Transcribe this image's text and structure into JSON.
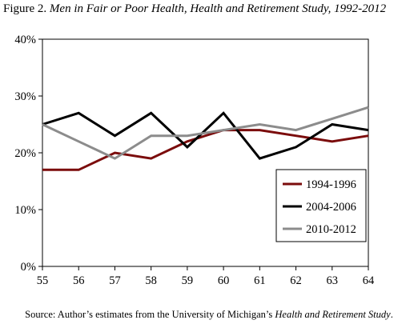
{
  "figure": {
    "label": "Figure 2.",
    "title": "Men in Fair or Poor Health, Health and Retirement Study, 1992-2012"
  },
  "source": {
    "prefix": "Source: Author’s estimates from the University of Michigan’s ",
    "italic": "Health and Retirement Study",
    "suffix": "."
  },
  "colors": {
    "1994-1996": "#7b0c0c",
    "2004-2006": "#000000",
    "2010-2012": "#8c8c8c"
  },
  "chart_data": {
    "type": "line",
    "x": [
      55,
      56,
      57,
      58,
      59,
      60,
      61,
      62,
      63,
      64
    ],
    "xlim": [
      55,
      64
    ],
    "ylim": [
      0,
      40
    ],
    "yticks": [
      0,
      10,
      20,
      30,
      40
    ],
    "ytick_labels": [
      "0%",
      "10%",
      "20%",
      "30%",
      "40%"
    ],
    "xtick_labels": [
      "55",
      "56",
      "57",
      "58",
      "59",
      "60",
      "61",
      "62",
      "63",
      "64"
    ],
    "grid": false,
    "legend": "lower-right",
    "series": [
      {
        "name": "1994-1996",
        "values": [
          17,
          17,
          20,
          19,
          22,
          24,
          24,
          23,
          22,
          23
        ]
      },
      {
        "name": "2004-2006",
        "values": [
          25,
          27,
          23,
          27,
          21,
          27,
          19,
          21,
          25,
          24
        ]
      },
      {
        "name": "2010-2012",
        "values": [
          25,
          22,
          19,
          23,
          23,
          24,
          25,
          24,
          26,
          28
        ]
      }
    ]
  }
}
